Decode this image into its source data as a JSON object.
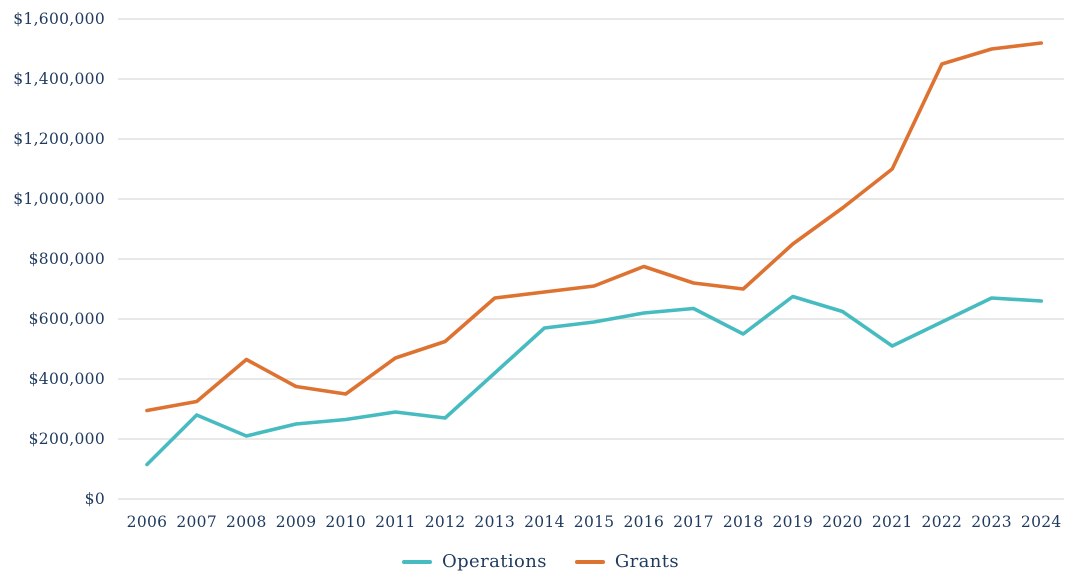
{
  "chart_data": {
    "type": "line",
    "title": "",
    "xlabel": "",
    "ylabel": "",
    "categories": [
      "2006",
      "2007",
      "2008",
      "2009",
      "2010",
      "2011",
      "2012",
      "2013",
      "2014",
      "2015",
      "2016",
      "2017",
      "2018",
      "2019",
      "2020",
      "2021",
      "2022",
      "2023",
      "2024"
    ],
    "series": [
      {
        "name": "Operations",
        "color": "#47BCC0",
        "values": [
          115000,
          280000,
          210000,
          250000,
          265000,
          290000,
          270000,
          420000,
          570000,
          590000,
          620000,
          635000,
          550000,
          675000,
          625000,
          510000,
          590000,
          670000,
          660000
        ]
      },
      {
        "name": "Grants",
        "color": "#DE7231",
        "values": [
          295000,
          325000,
          465000,
          375000,
          350000,
          470000,
          525000,
          670000,
          690000,
          710000,
          775000,
          720000,
          700000,
          850000,
          970000,
          1100000,
          1450000,
          1500000,
          1520000
        ]
      }
    ],
    "y_ticks": [
      {
        "value": 0,
        "label": "$0"
      },
      {
        "value": 200000,
        "label": "$200,000"
      },
      {
        "value": 400000,
        "label": "$400,000"
      },
      {
        "value": 600000,
        "label": "$600,000"
      },
      {
        "value": 800000,
        "label": "$800,000"
      },
      {
        "value": 1000000,
        "label": "$1,000,000"
      },
      {
        "value": 1200000,
        "label": "$1,200,000"
      },
      {
        "value": 1400000,
        "label": "$1,400,000"
      },
      {
        "value": 1600000,
        "label": "$1,600,000"
      }
    ],
    "ylim": [
      0,
      1600000
    ],
    "grid": "horizontal",
    "legend_position": "bottom"
  },
  "colors": {
    "axis_text": "#1F3A5F",
    "gridline": "#D9D9D9",
    "background": "#FFFFFF"
  }
}
